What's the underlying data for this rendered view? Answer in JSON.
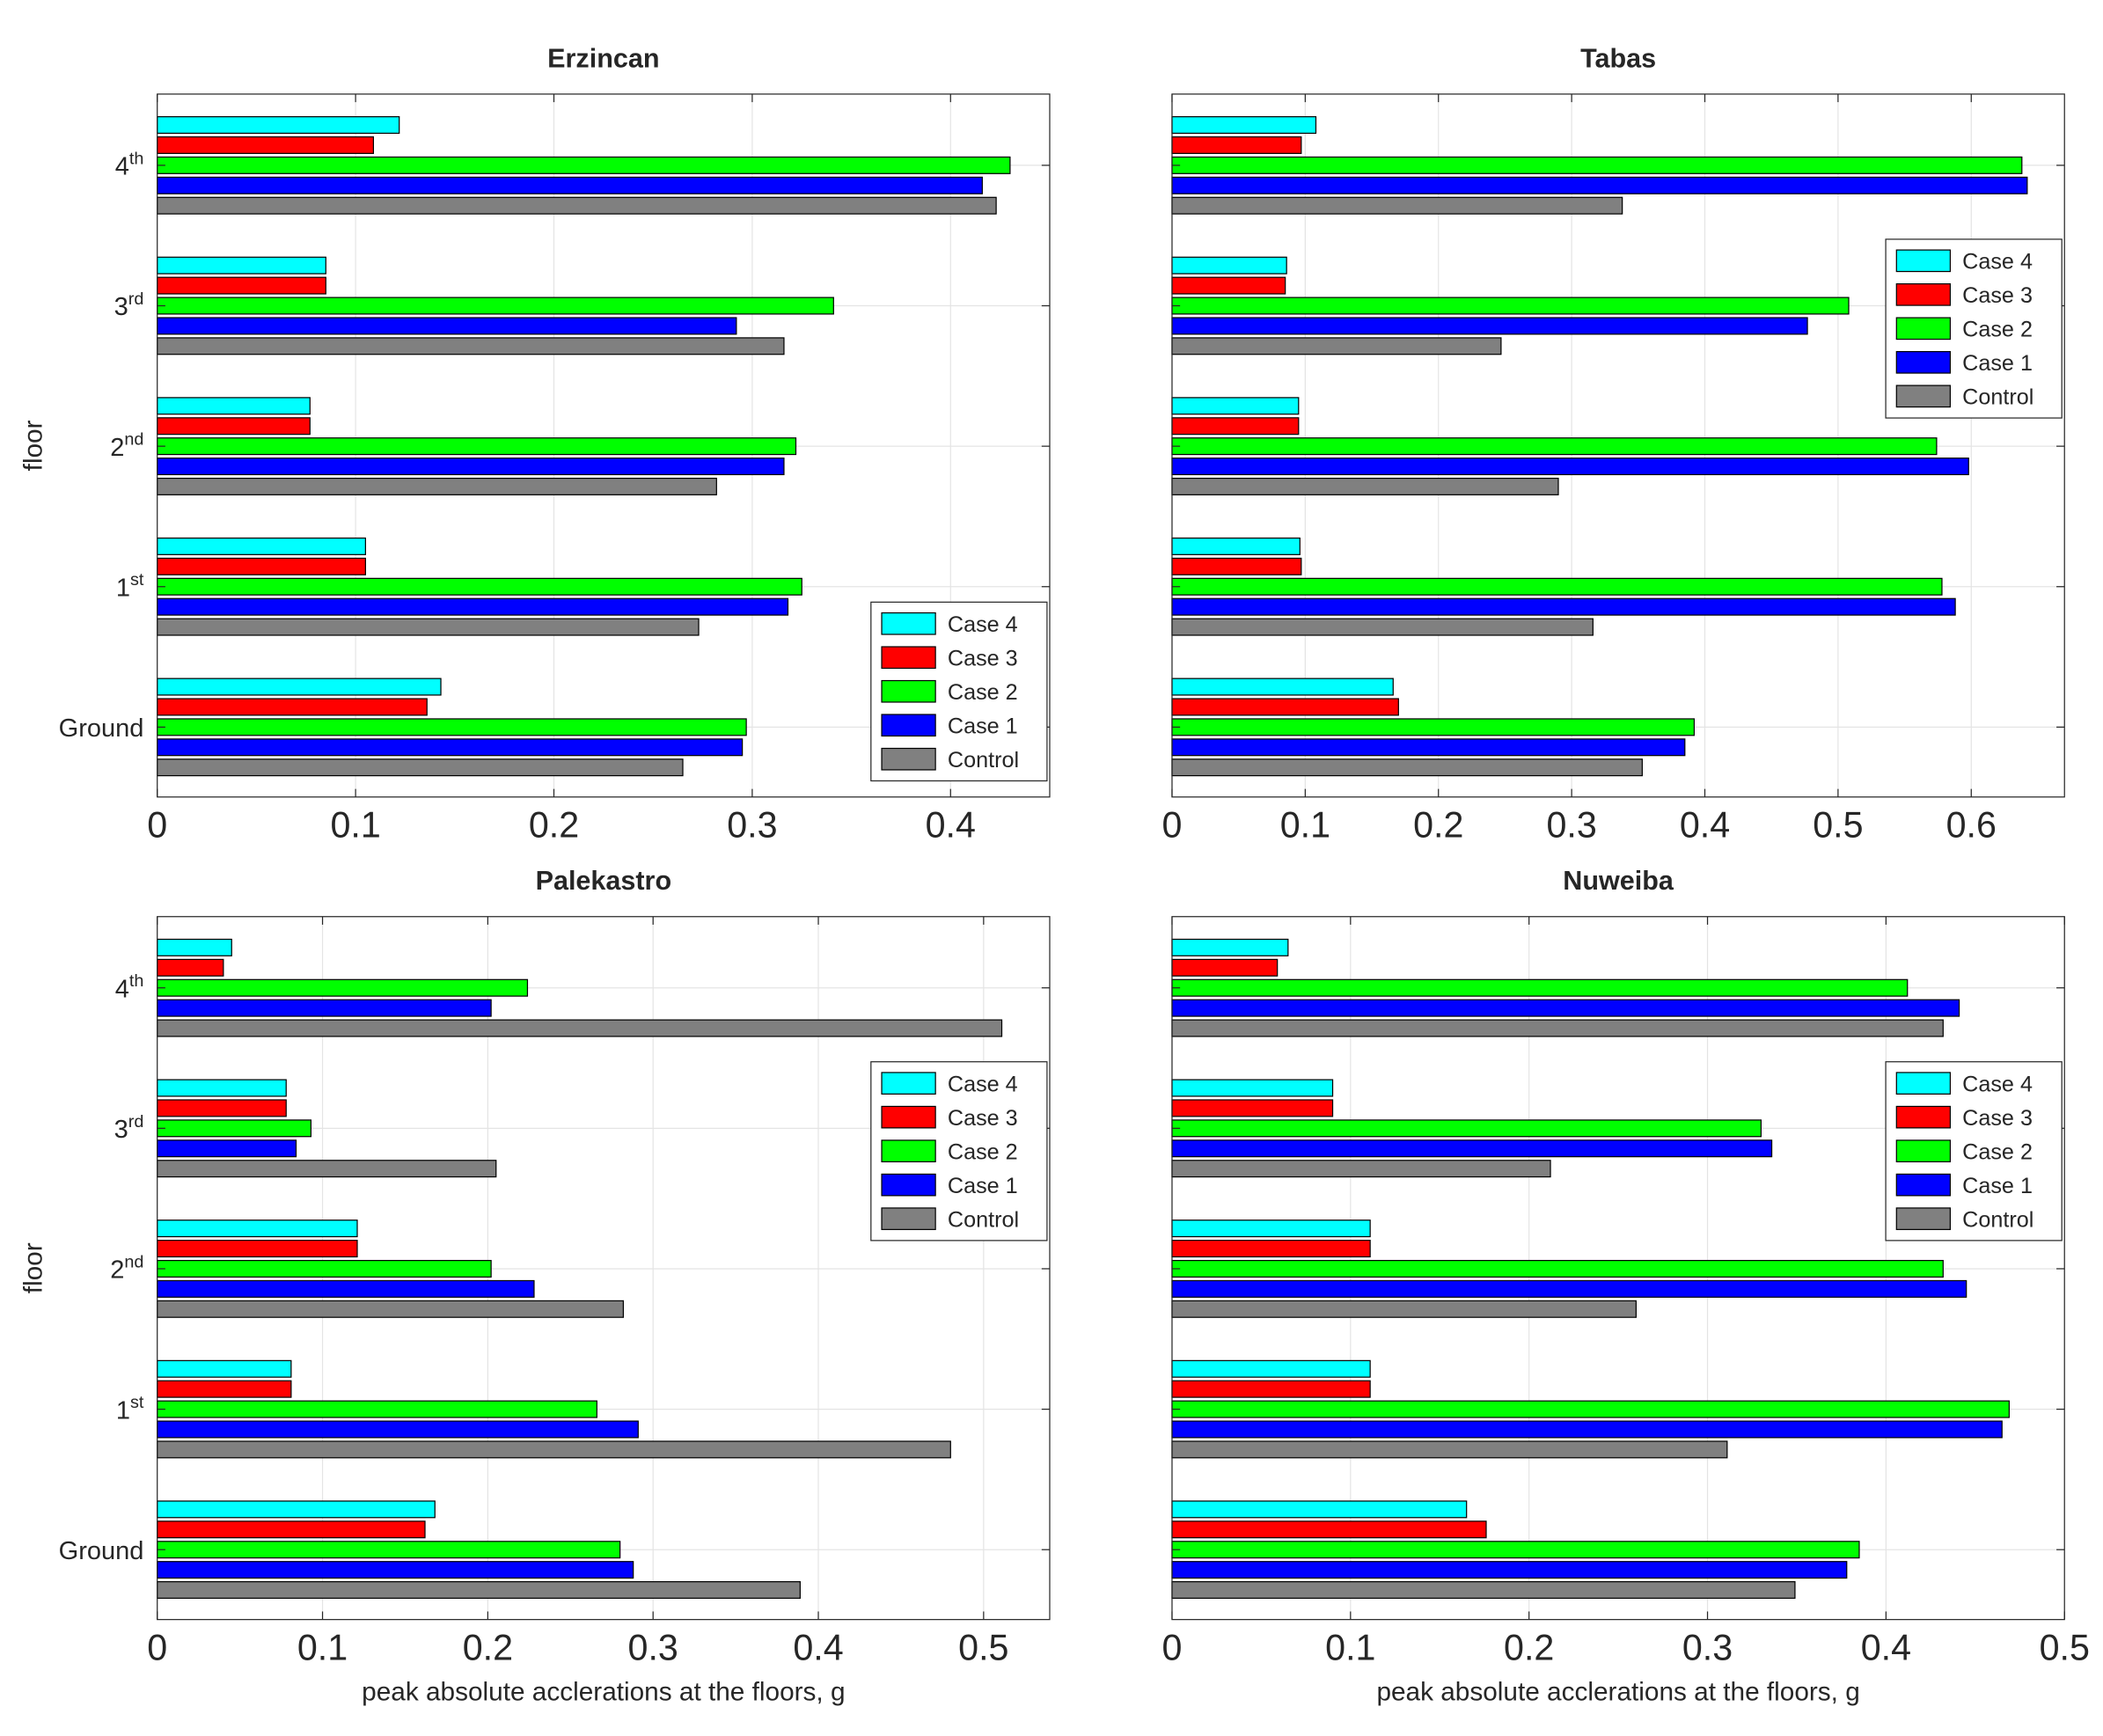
{
  "figure": {
    "ylabel": "floor",
    "xlabel": "peak absolute acclerations at the floors, g",
    "floors": [
      {
        "base": "Ground",
        "sup": ""
      },
      {
        "base": "1",
        "sup": "st"
      },
      {
        "base": "2",
        "sup": "nd"
      },
      {
        "base": "3",
        "sup": "rd"
      },
      {
        "base": "4",
        "sup": "th"
      }
    ],
    "colors": {
      "Case 4": "#00ffff",
      "Case 3": "#ff0000",
      "Case 2": "#00ff00",
      "Case 1": "#0000ff",
      "Control": "#808080"
    }
  },
  "chart_data": [
    {
      "type": "bar",
      "orientation": "horizontal",
      "title": "Erzincan",
      "xlabel": "",
      "ylabel": "floor",
      "categories": [
        "Ground",
        "1st",
        "2nd",
        "3rd",
        "4th"
      ],
      "xlim": [
        0,
        0.45
      ],
      "xticks": [
        0,
        0.1,
        0.2,
        0.3,
        0.4
      ],
      "grid": true,
      "legend_position": "bottom-right",
      "series": [
        {
          "name": "Case 4",
          "values": [
            0.143,
            0.105,
            0.077,
            0.085,
            0.122
          ]
        },
        {
          "name": "Case 3",
          "values": [
            0.136,
            0.105,
            0.077,
            0.085,
            0.109
          ]
        },
        {
          "name": "Case 2",
          "values": [
            0.297,
            0.325,
            0.322,
            0.341,
            0.43
          ]
        },
        {
          "name": "Case 1",
          "values": [
            0.295,
            0.318,
            0.316,
            0.292,
            0.416
          ]
        },
        {
          "name": "Control",
          "values": [
            0.265,
            0.273,
            0.282,
            0.316,
            0.423
          ]
        }
      ]
    },
    {
      "type": "bar",
      "orientation": "horizontal",
      "title": "Tabas",
      "xlabel": "",
      "ylabel": "",
      "categories": [
        "Ground",
        "1st",
        "2nd",
        "3rd",
        "4th"
      ],
      "xlim": [
        0,
        0.67
      ],
      "xticks": [
        0,
        0.1,
        0.2,
        0.3,
        0.4,
        0.5,
        0.6
      ],
      "grid": true,
      "legend_position": "top-right",
      "series": [
        {
          "name": "Case 4",
          "values": [
            0.166,
            0.096,
            0.095,
            0.086,
            0.108
          ]
        },
        {
          "name": "Case 3",
          "values": [
            0.17,
            0.097,
            0.095,
            0.085,
            0.097
          ]
        },
        {
          "name": "Case 2",
          "values": [
            0.392,
            0.578,
            0.574,
            0.508,
            0.638
          ]
        },
        {
          "name": "Case 1",
          "values": [
            0.385,
            0.588,
            0.598,
            0.477,
            0.642
          ]
        },
        {
          "name": "Control",
          "values": [
            0.353,
            0.316,
            0.29,
            0.247,
            0.338
          ]
        }
      ]
    },
    {
      "type": "bar",
      "orientation": "horizontal",
      "title": "Palekastro",
      "xlabel": "peak absolute acclerations at the floors, g",
      "ylabel": "floor",
      "categories": [
        "Ground",
        "1st",
        "2nd",
        "3rd",
        "4th"
      ],
      "xlim": [
        0,
        0.54
      ],
      "xticks": [
        0,
        0.1,
        0.2,
        0.3,
        0.4,
        0.5
      ],
      "grid": true,
      "legend_position": "top-right",
      "series": [
        {
          "name": "Case 4",
          "values": [
            0.168,
            0.081,
            0.121,
            0.078,
            0.045
          ]
        },
        {
          "name": "Case 3",
          "values": [
            0.162,
            0.081,
            0.121,
            0.078,
            0.04
          ]
        },
        {
          "name": "Case 2",
          "values": [
            0.28,
            0.266,
            0.202,
            0.093,
            0.224
          ]
        },
        {
          "name": "Case 1",
          "values": [
            0.288,
            0.291,
            0.228,
            0.084,
            0.202
          ]
        },
        {
          "name": "Control",
          "values": [
            0.389,
            0.48,
            0.282,
            0.205,
            0.511
          ]
        }
      ]
    },
    {
      "type": "bar",
      "orientation": "horizontal",
      "title": "Nuweiba",
      "xlabel": "peak absolute acclerations at the floors, g",
      "ylabel": "",
      "categories": [
        "Ground",
        "1st",
        "2nd",
        "3rd",
        "4th"
      ],
      "xlim": [
        0,
        0.5
      ],
      "xticks": [
        0,
        0.1,
        0.2,
        0.3,
        0.4,
        0.5
      ],
      "grid": true,
      "legend_position": "top-right",
      "series": [
        {
          "name": "Case 4",
          "values": [
            0.165,
            0.111,
            0.111,
            0.09,
            0.065
          ]
        },
        {
          "name": "Case 3",
          "values": [
            0.176,
            0.111,
            0.111,
            0.09,
            0.059
          ]
        },
        {
          "name": "Case 2",
          "values": [
            0.385,
            0.469,
            0.432,
            0.33,
            0.412
          ]
        },
        {
          "name": "Case 1",
          "values": [
            0.378,
            0.465,
            0.445,
            0.336,
            0.441
          ]
        },
        {
          "name": "Control",
          "values": [
            0.349,
            0.311,
            0.26,
            0.212,
            0.432
          ]
        }
      ]
    }
  ]
}
